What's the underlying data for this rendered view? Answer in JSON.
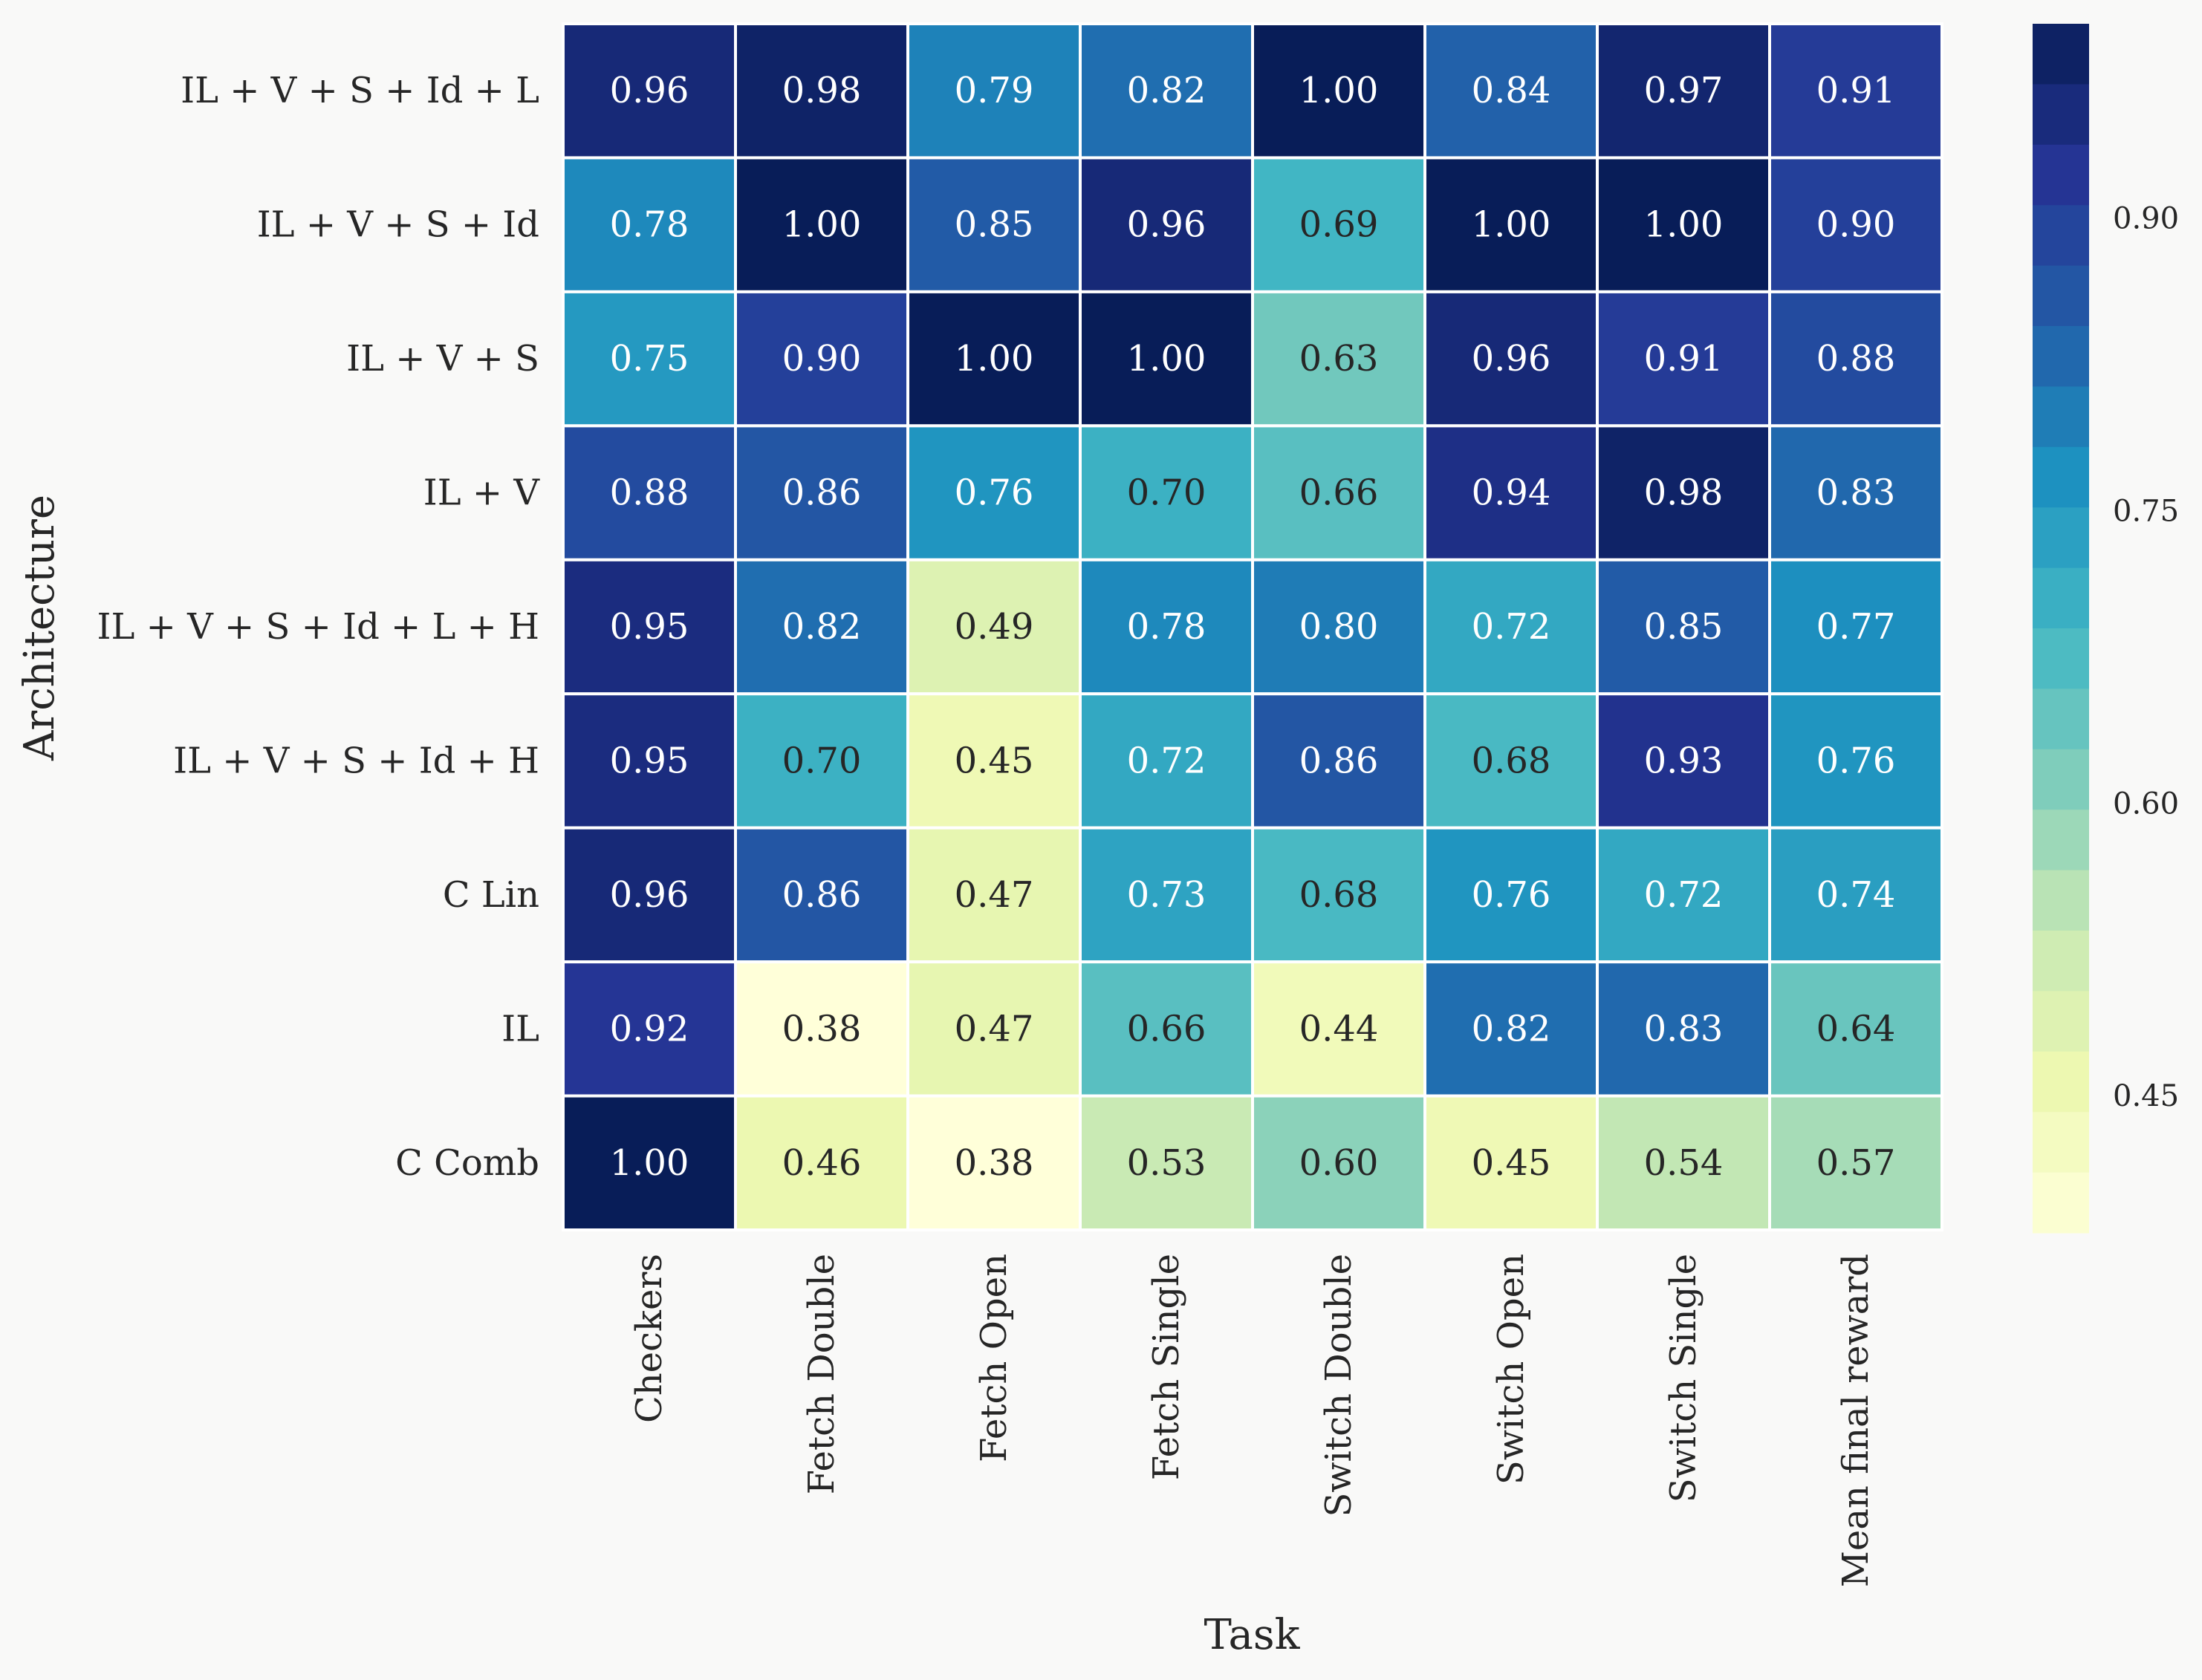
{
  "chart_data": {
    "type": "heatmap",
    "xlabel": "Task",
    "ylabel": "Architecture",
    "x_categories": [
      "Checkers",
      "Fetch Double",
      "Fetch Open",
      "Fetch Single",
      "Switch Double",
      "Switch Open",
      "Switch Single",
      "Mean final reward"
    ],
    "y_categories": [
      "IL + V + S + Id + L",
      "IL + V + S + Id",
      "IL + V + S",
      "IL + V",
      "IL + V + S + Id + L + H",
      "IL + V + S + Id + H",
      "C Lin",
      "IL",
      "C Comb"
    ],
    "values": [
      [
        0.96,
        0.98,
        0.79,
        0.82,
        1.0,
        0.84,
        0.97,
        0.91
      ],
      [
        0.78,
        1.0,
        0.85,
        0.96,
        0.69,
        1.0,
        1.0,
        0.9
      ],
      [
        0.75,
        0.9,
        1.0,
        1.0,
        0.63,
        0.96,
        0.91,
        0.88
      ],
      [
        0.88,
        0.86,
        0.76,
        0.7,
        0.66,
        0.94,
        0.98,
        0.83
      ],
      [
        0.95,
        0.82,
        0.49,
        0.78,
        0.8,
        0.72,
        0.85,
        0.77
      ],
      [
        0.95,
        0.7,
        0.45,
        0.72,
        0.86,
        0.68,
        0.93,
        0.76
      ],
      [
        0.96,
        0.86,
        0.47,
        0.73,
        0.68,
        0.76,
        0.72,
        0.74
      ],
      [
        0.92,
        0.38,
        0.47,
        0.66,
        0.44,
        0.82,
        0.83,
        0.64
      ],
      [
        1.0,
        0.46,
        0.38,
        0.53,
        0.6,
        0.45,
        0.54,
        0.57
      ]
    ],
    "value_labels": [
      [
        "0.96",
        "0.98",
        "0.79",
        "0.82",
        "1.00",
        "0.84",
        "0.97",
        "0.91"
      ],
      [
        "0.78",
        "1.00",
        "0.85",
        "0.96",
        "0.69",
        "1.00",
        "1.00",
        "0.90"
      ],
      [
        "0.75",
        "0.90",
        "1.00",
        "1.00",
        "0.63",
        "0.96",
        "0.91",
        "0.88"
      ],
      [
        "0.88",
        "0.86",
        "0.76",
        "0.70",
        "0.66",
        "0.94",
        "0.98",
        "0.83"
      ],
      [
        "0.95",
        "0.82",
        "0.49",
        "0.78",
        "0.80",
        "0.72",
        "0.85",
        "0.77"
      ],
      [
        "0.95",
        "0.70",
        "0.45",
        "0.72",
        "0.86",
        "0.68",
        "0.93",
        "0.76"
      ],
      [
        "0.96",
        "0.86",
        "0.47",
        "0.73",
        "0.68",
        "0.76",
        "0.72",
        "0.74"
      ],
      [
        "0.92",
        "0.38",
        "0.47",
        "0.66",
        "0.44",
        "0.82",
        "0.83",
        "0.64"
      ],
      [
        "1.00",
        "0.46",
        "0.38",
        "0.53",
        "0.60",
        "0.45",
        "0.54",
        "0.57"
      ]
    ],
    "colormap": "YlGnBu",
    "color_range": [
      0.38,
      1.0
    ],
    "colorbar": {
      "placement": "right",
      "ticks": [
        0.45,
        0.6,
        0.75,
        0.9
      ],
      "tick_labels": [
        "0.45",
        "0.60",
        "0.75",
        "0.90"
      ]
    },
    "grid": false,
    "cell_separator_color": "#ffffff",
    "background_color": "#f9f9f8"
  }
}
